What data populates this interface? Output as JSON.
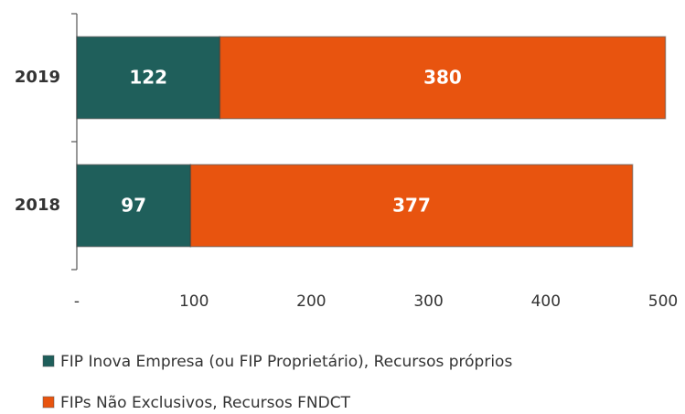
{
  "chart_data": {
    "type": "stacked_barh",
    "categories": [
      "2019",
      "2018"
    ],
    "series": [
      {
        "name": "FIP Inova Empresa (ou FIP Proprietário), Recursos próprios",
        "color": "#1f5f5b",
        "values": [
          122,
          97
        ]
      },
      {
        "name": "FIPs Não Exclusivos, Recursos FNDCT",
        "color": "#e8540f",
        "values": [
          380,
          377
        ]
      }
    ],
    "xlim": [
      0,
      500
    ],
    "xticks": [
      {
        "value": 0,
        "label": "-"
      },
      100,
      200,
      300,
      400,
      500
    ]
  }
}
